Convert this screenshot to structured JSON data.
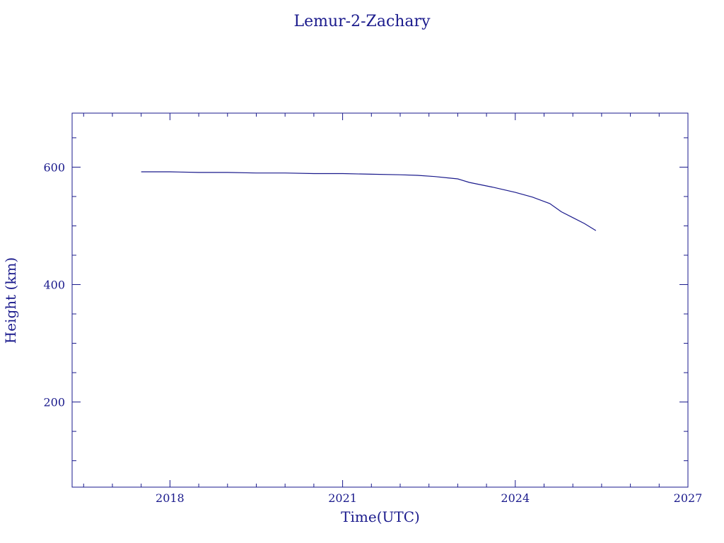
{
  "chart_data": {
    "type": "line",
    "title": "Lemur-2-Zachary",
    "xlabel": "Time(UTC)",
    "ylabel": "Height (km)",
    "xlim": [
      2016.3,
      2027.0
    ],
    "ylim": [
      55,
      692
    ],
    "x_major_ticks": [
      2018,
      2021,
      2024,
      2027
    ],
    "x_minor_step": 0.5,
    "y_major_ticks": [
      200,
      400,
      600
    ],
    "y_minor_step": 50,
    "grid": false,
    "legend": "none",
    "color": "#1a1a8c",
    "series": [
      {
        "x": [
          2017.5,
          2018.0,
          2018.5,
          2019.0,
          2019.5,
          2020.0,
          2020.5,
          2021.0,
          2021.5,
          2022.0,
          2022.3,
          2022.6,
          2023.0,
          2023.2,
          2023.6,
          2024.0,
          2024.3,
          2024.6,
          2024.8,
          2025.0,
          2025.2,
          2025.4
        ],
        "y": [
          592,
          592,
          591,
          591,
          590,
          590,
          589,
          589,
          588,
          587,
          586,
          584,
          580,
          574,
          566,
          557,
          549,
          538,
          524,
          514,
          504,
          492
        ]
      }
    ]
  }
}
